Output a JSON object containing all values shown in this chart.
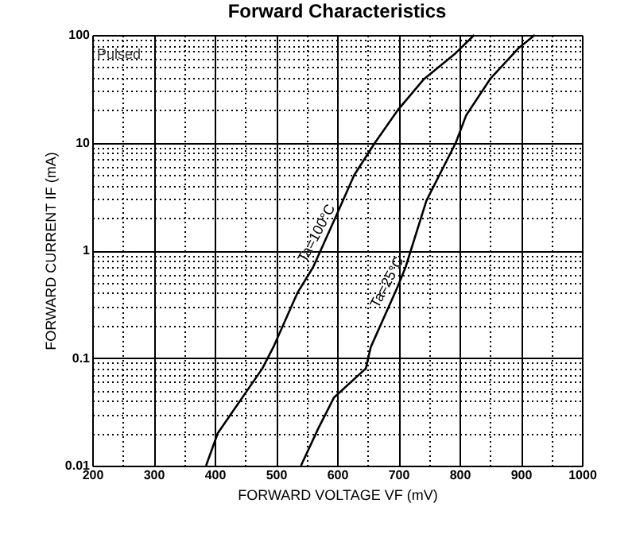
{
  "chart_data": {
    "type": "line",
    "title": "Forward   Characteristics",
    "xlabel": "FORWARD VOLTAGE     VF    (mV)",
    "ylabel": "FORWARD CURRENT    IF    (mA)",
    "log": "y",
    "grid": true,
    "line_style": "solid",
    "xlim": [
      200,
      1000
    ],
    "ylim": [
      0.01,
      100
    ],
    "xticks": [
      200,
      {
        "value": 250,
        "label": null
      },
      300,
      {
        "value": 350,
        "label": null
      },
      400,
      {
        "value": 450,
        "label": null
      },
      500,
      {
        "value": 550,
        "label": null
      },
      600,
      {
        "value": 650,
        "label": null
      },
      700,
      {
        "value": 750,
        "label": null
      },
      800,
      {
        "value": 850,
        "label": null
      },
      900,
      {
        "value": 950,
        "label": null
      },
      1000
    ],
    "yticks": [
      0.01,
      {
        "value": 0.02,
        "label": null
      },
      {
        "value": 0.03,
        "label": null
      },
      {
        "value": 0.04,
        "label": null
      },
      {
        "value": 0.05,
        "label": null
      },
      {
        "value": 0.06,
        "label": null
      },
      {
        "value": 0.07,
        "label": null
      },
      {
        "value": 0.08,
        "label": null
      },
      {
        "value": 0.09,
        "label": null
      },
      0.1,
      {
        "value": 0.2,
        "label": null
      },
      {
        "value": 0.3,
        "label": null
      },
      {
        "value": 0.4,
        "label": null
      },
      {
        "value": 0.5,
        "label": null
      },
      {
        "value": 0.6,
        "label": null
      },
      {
        "value": 0.7,
        "label": null
      },
      {
        "value": 0.8,
        "label": null
      },
      {
        "value": 0.9,
        "label": null
      },
      1,
      {
        "value": 2,
        "label": null
      },
      {
        "value": 3,
        "label": null
      },
      {
        "value": 4,
        "label": null
      },
      {
        "value": 5,
        "label": null
      },
      {
        "value": 6,
        "label": null
      },
      {
        "value": 7,
        "label": null
      },
      {
        "value": 8,
        "label": null
      },
      {
        "value": 9,
        "label": null
      },
      10,
      {
        "value": 20,
        "label": null
      },
      {
        "value": 30,
        "label": null
      },
      {
        "value": 40,
        "label": null
      },
      {
        "value": 50,
        "label": null
      },
      {
        "value": 60,
        "label": null
      },
      {
        "value": 70,
        "label": null
      },
      {
        "value": 80,
        "label": null
      },
      {
        "value": 90,
        "label": null
      },
      100
    ],
    "annotations": [
      "Pulsed"
    ],
    "series": [
      {
        "name": "Ta=100°C",
        "color": "#000000",
        "x": [
          386,
          405,
          478,
          497,
          535,
          561,
          597,
          628,
          662,
          699,
          742,
          794,
          824
        ],
        "values": [
          0.01,
          0.02,
          0.08,
          0.13,
          0.4,
          0.7,
          2,
          5,
          10,
          20,
          39,
          68,
          100
        ]
      },
      {
        "name": "Ta=25°C",
        "color": "#000000",
        "x": [
          541,
          569,
          595,
          647,
          655,
          699,
          712,
          746,
          794,
          811,
          850,
          897,
          923
        ],
        "values": [
          0.01,
          0.022,
          0.043,
          0.08,
          0.126,
          0.46,
          0.7,
          2.9,
          10,
          18,
          39,
          76,
          100
        ]
      }
    ]
  }
}
